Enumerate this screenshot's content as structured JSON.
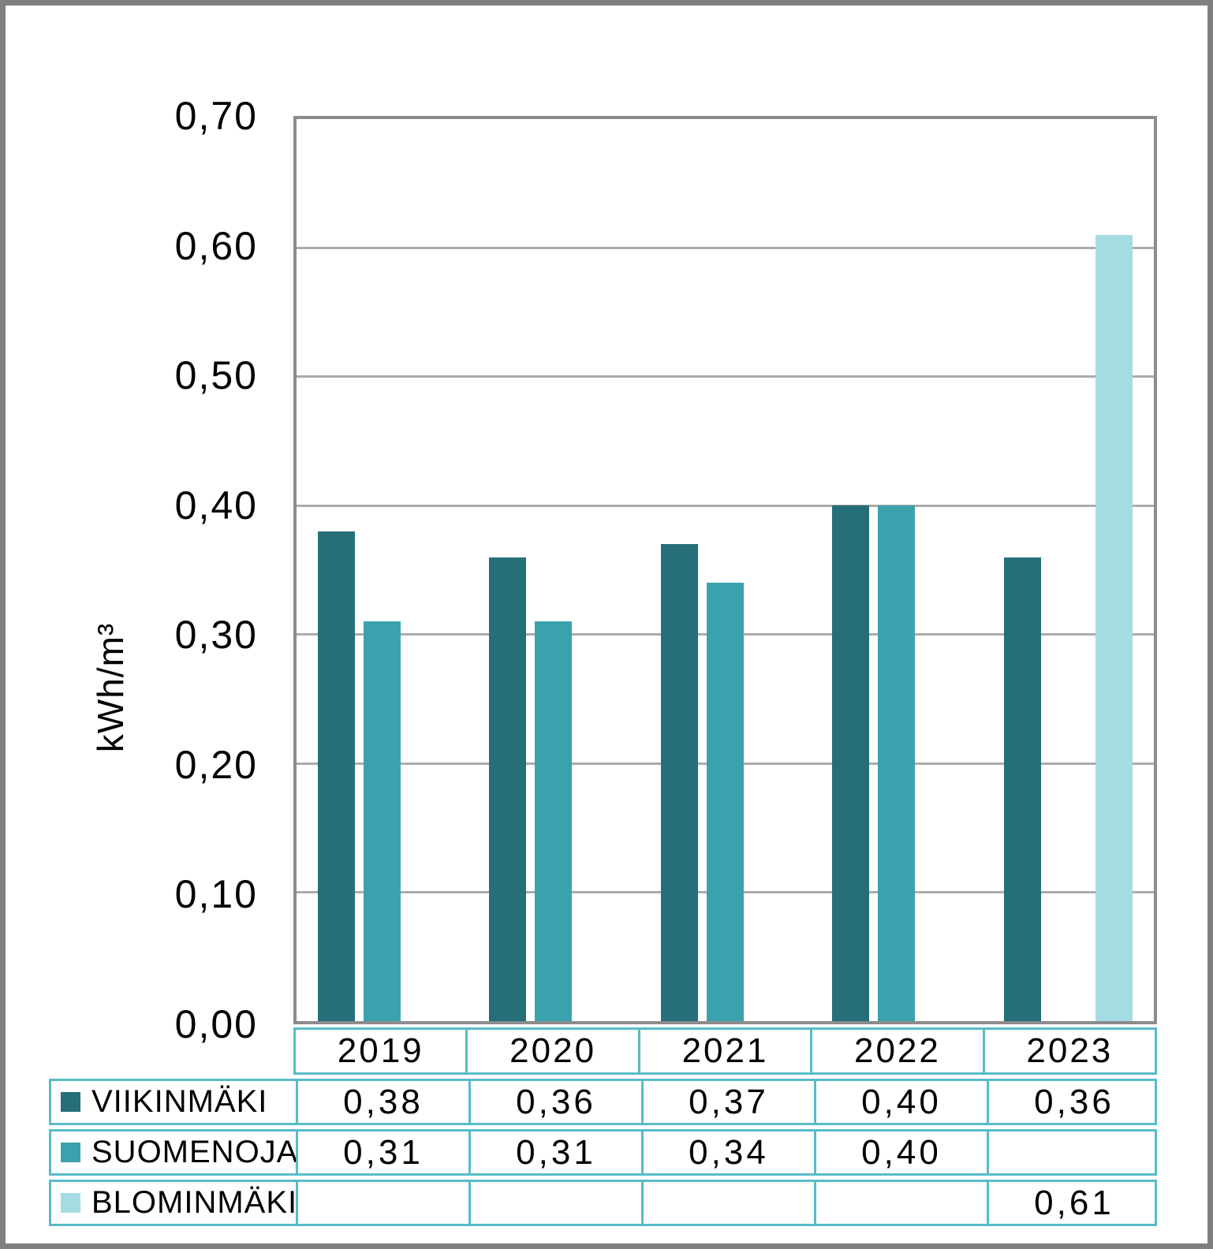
{
  "chart_data": {
    "type": "bar",
    "title": "",
    "xlabel": "",
    "ylabel": "kWh/m³",
    "ylim": [
      0,
      0.7
    ],
    "ytick_step": 0.1,
    "y_tick_labels": [
      "0,70",
      "0,60",
      "0,50",
      "0,40",
      "0,30",
      "0,20",
      "0,10",
      "0,00"
    ],
    "grid": true,
    "legend_position": "table-bottom-left",
    "categories": [
      "2019",
      "2020",
      "2021",
      "2022",
      "2023"
    ],
    "series": [
      {
        "name": "VIIKINMÄKI",
        "color": "#266e78",
        "values": [
          0.38,
          0.36,
          0.37,
          0.4,
          0.36
        ],
        "display": [
          "0,38",
          "0,36",
          "0,37",
          "0,40",
          "0,36"
        ]
      },
      {
        "name": "SUOMENOJA",
        "color": "#3aa2ad",
        "values": [
          0.31,
          0.31,
          0.34,
          0.4,
          null
        ],
        "display": [
          "0,31",
          "0,31",
          "0,34",
          "0,40",
          ""
        ]
      },
      {
        "name": "BLOMINMÄKI",
        "color": "#a5dbe2",
        "values": [
          null,
          null,
          null,
          null,
          0.61
        ],
        "display": [
          "",
          "",
          "",
          "",
          "0,61"
        ]
      }
    ]
  },
  "colors": {
    "frame": "#7f7f7f",
    "axis": "#8c8c8c",
    "gridline": "#acacac",
    "table_border": "#58bcc8",
    "text": "#000000",
    "background": "#ffffff"
  }
}
